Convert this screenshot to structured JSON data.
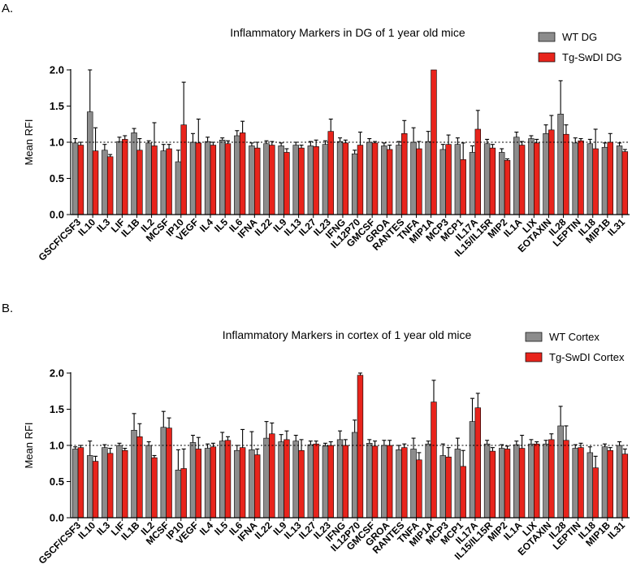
{
  "colors": {
    "wt": "#8c8c8c",
    "tg": "#e8241c",
    "axis": "#000000",
    "error": "#000000",
    "reference": "#000000"
  },
  "chart_data": [
    {
      "type": "bar",
      "panel_label": "A.",
      "title": "Inflammatory Markers in DG of 1 year old mice",
      "ylabel": "Mean RFI",
      "ylim": [
        0,
        2.0
      ],
      "yticks": [
        "0.0",
        "0.5",
        "1.0",
        "1.5",
        "2.0"
      ],
      "reference_line": 1.0,
      "legend_position": "top-right",
      "categories": [
        "GSCF/CSF3",
        "IL10",
        "IL3",
        "LIF",
        "IL1B",
        "IL2",
        "MCSF",
        "IP10",
        "VEGF",
        "IL4",
        "IL5",
        "IL6",
        "IFNA",
        "IL22",
        "IL9",
        "IL13",
        "IL27",
        "IL23",
        "IFNG",
        "IL12P70",
        "GMCSF",
        "GROA",
        "RANTES",
        "TNFA",
        "MIP1A",
        "MCP3",
        "MCP1",
        "IL17A",
        "IL15/IL15R",
        "MIP2",
        "IL1A",
        "LIX",
        "EOTAXIN",
        "IL28",
        "LEPTIN",
        "IL18",
        "MIP1B",
        "IL31"
      ],
      "series": [
        {
          "name": "WT DG",
          "values": [
            0.99,
            1.42,
            0.89,
            1.01,
            1.13,
            0.99,
            0.88,
            0.73,
            1.0,
            1.01,
            1.03,
            1.09,
            0.95,
            0.98,
            0.95,
            0.96,
            0.95,
            0.97,
            1.01,
            0.84,
            1.0,
            0.95,
            0.96,
            1.0,
            1.01,
            0.9,
            0.97,
            0.86,
            0.98,
            0.86,
            1.07,
            1.05,
            1.12,
            1.39,
            0.99,
            0.98,
            0.93,
            0.95
          ],
          "errors": [
            0.06,
            0.58,
            0.08,
            0.06,
            0.06,
            0.03,
            0.09,
            0.16,
            0.12,
            0.06,
            0.03,
            0.07,
            0.04,
            0.04,
            0.04,
            0.04,
            0.06,
            0.05,
            0.05,
            0.05,
            0.05,
            0.04,
            0.05,
            0.2,
            0.14,
            0.07,
            0.09,
            0.09,
            0.06,
            0.05,
            0.07,
            0.04,
            0.12,
            0.46,
            0.07,
            0.06,
            0.06,
            0.04
          ]
        },
        {
          "name": "Tg-SwDI DG",
          "values": [
            0.96,
            0.88,
            0.8,
            1.04,
            0.89,
            0.95,
            0.91,
            1.24,
            0.99,
            0.96,
            0.98,
            1.13,
            0.92,
            0.96,
            0.86,
            0.92,
            0.94,
            1.15,
            0.99,
            0.96,
            0.99,
            0.9,
            1.12,
            0.91,
            2.0,
            0.97,
            0.76,
            1.18,
            0.92,
            0.75,
            0.96,
            0.99,
            1.17,
            1.11,
            1.02,
            0.91,
            1.0,
            0.87
          ]
        },
        {
          "name_hidden": true,
          "errors": [
            0.04,
            0.32,
            0.03,
            0.05,
            0.16,
            0.32,
            0.06,
            0.59,
            0.33,
            0.04,
            0.04,
            0.16,
            0.08,
            0.05,
            0.05,
            0.04,
            0.09,
            0.17,
            0.04,
            0.18,
            0.02,
            0.06,
            0.18,
            0.1,
            0.0,
            0.13,
            0.23,
            0.26,
            0.05,
            0.02,
            0.05,
            0.05,
            0.2,
            0.13,
            0.03,
            0.27,
            0.12,
            0.03
          ]
        }
      ]
    },
    {
      "type": "bar",
      "panel_label": "B.",
      "title": "Inflammatory Markers in cortex of 1 year old mice",
      "ylabel": "Mean RFI",
      "ylim": [
        0,
        2.0
      ],
      "yticks": [
        "0.0",
        "0.5",
        "1.0",
        "1.5",
        "2.0"
      ],
      "reference_line": 1.0,
      "legend_position": "top-right",
      "categories": [
        "GSCF/CSF3",
        "IL10",
        "IL3",
        "LIF",
        "IL1B",
        "IL2",
        "MCSF",
        "IP10",
        "VEGF",
        "IL4",
        "IL5",
        "IL6",
        "IFNA",
        "IL22",
        "IL9",
        "IL13",
        "IL27",
        "IL23",
        "IFNG",
        "IL12P70",
        "GMCSF",
        "GROA",
        "RANTES",
        "TNFA",
        "MIP1A",
        "MCP3",
        "MCP1",
        "IL17A",
        "IL15/IL15R",
        "MIP2",
        "IL1A",
        "LIX",
        "EOTAXIN",
        "IL28",
        "LEPTIN",
        "IL18",
        "MIP1B",
        "IL31"
      ],
      "series": [
        {
          "name": "WT Cortex",
          "values": [
            0.95,
            0.86,
            0.97,
            1.0,
            1.21,
            1.0,
            1.25,
            0.66,
            1.04,
            0.96,
            1.06,
            0.93,
            0.94,
            1.1,
            1.05,
            1.06,
            1.01,
            0.99,
            1.08,
            1.18,
            1.03,
            1.0,
            0.94,
            0.95,
            1.02,
            0.86,
            0.95,
            1.33,
            1.02,
            0.96,
            1.01,
            1.02,
            1.02,
            1.27,
            0.96,
            0.9,
            0.98,
            1.0
          ],
          "errors": [
            0.03,
            0.2,
            0.04,
            0.03,
            0.23,
            0.05,
            0.22,
            0.28,
            0.1,
            0.06,
            0.12,
            0.07,
            0.25,
            0.23,
            0.1,
            0.08,
            0.05,
            0.04,
            0.12,
            0.17,
            0.05,
            0.07,
            0.06,
            0.15,
            0.04,
            0.16,
            0.15,
            0.32,
            0.05,
            0.05,
            0.05,
            0.06,
            0.05,
            0.27,
            0.05,
            0.08,
            0.04,
            0.05
          ]
        },
        {
          "name": "Tg-SwDI Cortex",
          "values": [
            0.97,
            0.78,
            0.89,
            0.93,
            1.12,
            0.83,
            1.24,
            0.68,
            0.95,
            0.98,
            1.07,
            0.97,
            0.87,
            1.16,
            1.08,
            0.93,
            1.02,
            1.0,
            1.0,
            1.97,
            0.99,
            1.0,
            0.97,
            0.8,
            1.6,
            0.84,
            0.71,
            1.52,
            0.92,
            0.95,
            0.96,
            1.02,
            1.08,
            1.07,
            0.97,
            0.69,
            0.93,
            0.88
          ],
          "errors": [
            0.03,
            0.07,
            0.07,
            0.03,
            0.18,
            0.03,
            0.14,
            0.27,
            0.16,
            0.05,
            0.05,
            0.25,
            0.08,
            0.15,
            0.12,
            0.15,
            0.04,
            0.05,
            0.08,
            0.03,
            0.07,
            0.07,
            0.05,
            0.1,
            0.3,
            0.13,
            0.22,
            0.2,
            0.05,
            0.04,
            0.18,
            0.03,
            0.08,
            0.2,
            0.06,
            0.16,
            0.04,
            0.07
          ]
        }
      ]
    }
  ]
}
